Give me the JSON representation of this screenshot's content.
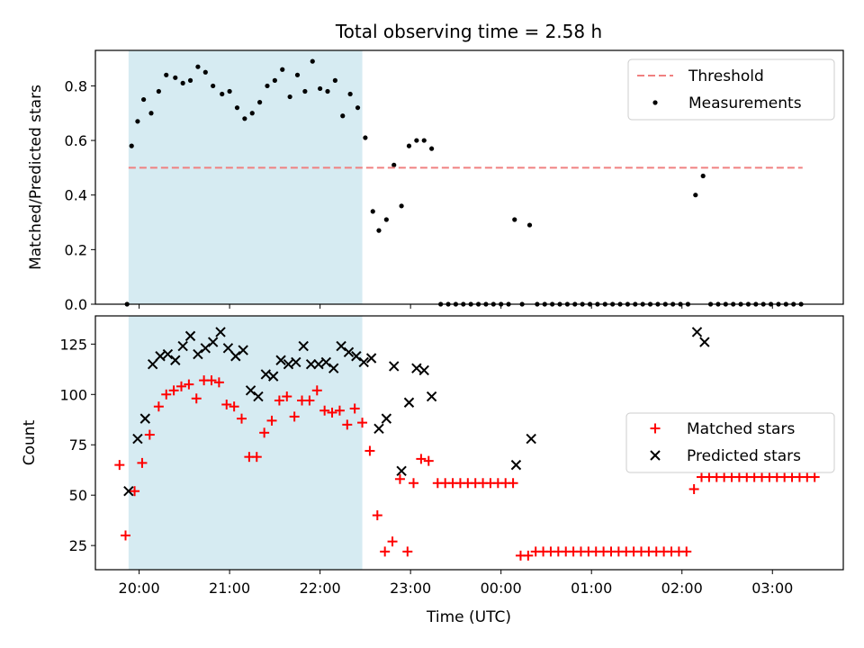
{
  "figure": {
    "title": "Total observing time = 2.58 h"
  },
  "colors": {
    "threshold": "#f08080",
    "measurement": "#000000",
    "matched": "#ff0000",
    "predicted": "#000000",
    "span": "#add8e6"
  },
  "chart_data": [
    {
      "type": "scatter",
      "title": "Total observing time = 2.58 h",
      "xlabel": "",
      "ylabel": "Matched/Predicted stars",
      "xlim": [
        "19:31",
        "03:47"
      ],
      "ylim": [
        0,
        0.93
      ],
      "yticks": [
        "0.0",
        "0.2",
        "0.4",
        "0.6",
        "0.8"
      ],
      "shaded_span": [
        "19:53",
        "22:28"
      ],
      "legend_position": "upper right",
      "threshold": {
        "name": "Threshold",
        "style": "dashed",
        "y": 0.5,
        "x_range": [
          "19:53",
          "03:20"
        ]
      },
      "series": [
        {
          "name": "Measurements",
          "points": [
            [
              "19:52",
              0.0
            ],
            [
              "19:55",
              0.58
            ],
            [
              "19:59",
              0.67
            ],
            [
              "20:03",
              0.75
            ],
            [
              "20:08",
              0.7
            ],
            [
              "20:13",
              0.78
            ],
            [
              "20:18",
              0.84
            ],
            [
              "20:24",
              0.83
            ],
            [
              "20:29",
              0.81
            ],
            [
              "20:34",
              0.82
            ],
            [
              "20:39",
              0.87
            ],
            [
              "20:44",
              0.85
            ],
            [
              "20:49",
              0.8
            ],
            [
              "20:55",
              0.77
            ],
            [
              "21:00",
              0.78
            ],
            [
              "21:05",
              0.72
            ],
            [
              "21:10",
              0.68
            ],
            [
              "21:15",
              0.7
            ],
            [
              "21:20",
              0.74
            ],
            [
              "21:25",
              0.8
            ],
            [
              "21:30",
              0.82
            ],
            [
              "21:35",
              0.86
            ],
            [
              "21:40",
              0.76
            ],
            [
              "21:45",
              0.84
            ],
            [
              "21:50",
              0.78
            ],
            [
              "21:55",
              0.89
            ],
            [
              "22:00",
              0.79
            ],
            [
              "22:05",
              0.78
            ],
            [
              "22:10",
              0.82
            ],
            [
              "22:15",
              0.69
            ],
            [
              "22:20",
              0.77
            ],
            [
              "22:25",
              0.72
            ],
            [
              "22:30",
              0.61
            ],
            [
              "22:35",
              0.34
            ],
            [
              "22:39",
              0.27
            ],
            [
              "22:44",
              0.31
            ],
            [
              "22:49",
              0.51
            ],
            [
              "22:54",
              0.36
            ],
            [
              "22:59",
              0.58
            ],
            [
              "23:04",
              0.6
            ],
            [
              "23:09",
              0.6
            ],
            [
              "23:14",
              0.57
            ],
            [
              "23:20",
              0.0
            ],
            [
              "23:25",
              0.0
            ],
            [
              "23:30",
              0.0
            ],
            [
              "23:35",
              0.0
            ],
            [
              "23:40",
              0.0
            ],
            [
              "23:45",
              0.0
            ],
            [
              "23:50",
              0.0
            ],
            [
              "23:55",
              0.0
            ],
            [
              "00:00",
              0.0
            ],
            [
              "00:05",
              0.0
            ],
            [
              "00:09",
              0.31
            ],
            [
              "00:14",
              0.0
            ],
            [
              "00:19",
              0.29
            ],
            [
              "00:24",
              0.0
            ],
            [
              "00:29",
              0.0
            ],
            [
              "00:34",
              0.0
            ],
            [
              "00:39",
              0.0
            ],
            [
              "00:44",
              0.0
            ],
            [
              "00:49",
              0.0
            ],
            [
              "00:54",
              0.0
            ],
            [
              "00:59",
              0.0
            ],
            [
              "01:04",
              0.0
            ],
            [
              "01:09",
              0.0
            ],
            [
              "01:14",
              0.0
            ],
            [
              "01:19",
              0.0
            ],
            [
              "01:24",
              0.0
            ],
            [
              "01:29",
              0.0
            ],
            [
              "01:34",
              0.0
            ],
            [
              "01:39",
              0.0
            ],
            [
              "01:44",
              0.0
            ],
            [
              "01:49",
              0.0
            ],
            [
              "01:54",
              0.0
            ],
            [
              "01:59",
              0.0
            ],
            [
              "02:04",
              0.0
            ],
            [
              "02:09",
              0.4
            ],
            [
              "02:14",
              0.47
            ],
            [
              "02:19",
              0.0
            ],
            [
              "02:24",
              0.0
            ],
            [
              "02:29",
              0.0
            ],
            [
              "02:34",
              0.0
            ],
            [
              "02:39",
              0.0
            ],
            [
              "02:44",
              0.0
            ],
            [
              "02:49",
              0.0
            ],
            [
              "02:54",
              0.0
            ],
            [
              "02:59",
              0.0
            ],
            [
              "03:04",
              0.0
            ],
            [
              "03:09",
              0.0
            ],
            [
              "03:14",
              0.0
            ],
            [
              "03:19",
              0.0
            ]
          ]
        }
      ]
    },
    {
      "type": "scatter",
      "xlabel": "Time (UTC)",
      "ylabel": "Count",
      "xlim": [
        "19:31",
        "03:47"
      ],
      "ylim": [
        13,
        139
      ],
      "yticks": [
        "25",
        "50",
        "75",
        "100",
        "125"
      ],
      "xticks": [
        "20:00",
        "21:00",
        "22:00",
        "23:00",
        "00:00",
        "01:00",
        "02:00",
        "03:00"
      ],
      "shaded_span": [
        "19:53",
        "22:28"
      ],
      "legend_position": "center right",
      "series": [
        {
          "name": "Matched stars",
          "marker": "+",
          "points": [
            [
              "19:47",
              65
            ],
            [
              "19:51",
              30
            ],
            [
              "19:57",
              52
            ],
            [
              "20:02",
              66
            ],
            [
              "20:07",
              80
            ],
            [
              "20:13",
              94
            ],
            [
              "20:18",
              100
            ],
            [
              "20:23",
              102
            ],
            [
              "20:28",
              104
            ],
            [
              "20:33",
              105
            ],
            [
              "20:38",
              98
            ],
            [
              "20:43",
              107
            ],
            [
              "20:48",
              107
            ],
            [
              "20:53",
              106
            ],
            [
              "20:58",
              95
            ],
            [
              "21:03",
              94
            ],
            [
              "21:08",
              88
            ],
            [
              "21:13",
              69
            ],
            [
              "21:18",
              69
            ],
            [
              "21:23",
              81
            ],
            [
              "21:28",
              87
            ],
            [
              "21:33",
              97
            ],
            [
              "21:38",
              99
            ],
            [
              "21:43",
              89
            ],
            [
              "21:48",
              97
            ],
            [
              "21:53",
              97
            ],
            [
              "21:58",
              102
            ],
            [
              "22:03",
              92
            ],
            [
              "22:08",
              91
            ],
            [
              "22:13",
              92
            ],
            [
              "22:18",
              85
            ],
            [
              "22:23",
              93
            ],
            [
              "22:28",
              86
            ],
            [
              "22:33",
              72
            ],
            [
              "22:38",
              40
            ],
            [
              "22:43",
              22
            ],
            [
              "22:48",
              27
            ],
            [
              "22:53",
              58
            ],
            [
              "22:58",
              22
            ],
            [
              "23:02",
              56
            ],
            [
              "23:07",
              68
            ],
            [
              "23:12",
              67
            ],
            [
              "23:18",
              56
            ],
            [
              "23:23",
              56
            ],
            [
              "23:28",
              56
            ],
            [
              "23:33",
              56
            ],
            [
              "23:38",
              56
            ],
            [
              "23:43",
              56
            ],
            [
              "23:48",
              56
            ],
            [
              "23:53",
              56
            ],
            [
              "23:58",
              56
            ],
            [
              "00:03",
              56
            ],
            [
              "00:08",
              56
            ],
            [
              "00:13",
              20
            ],
            [
              "00:18",
              20
            ],
            [
              "00:23",
              22
            ],
            [
              "00:28",
              22
            ],
            [
              "00:33",
              22
            ],
            [
              "00:38",
              22
            ],
            [
              "00:43",
              22
            ],
            [
              "00:48",
              22
            ],
            [
              "00:53",
              22
            ],
            [
              "00:58",
              22
            ],
            [
              "01:03",
              22
            ],
            [
              "01:08",
              22
            ],
            [
              "01:13",
              22
            ],
            [
              "01:18",
              22
            ],
            [
              "01:23",
              22
            ],
            [
              "01:28",
              22
            ],
            [
              "01:33",
              22
            ],
            [
              "01:38",
              22
            ],
            [
              "01:43",
              22
            ],
            [
              "01:48",
              22
            ],
            [
              "01:53",
              22
            ],
            [
              "01:58",
              22
            ],
            [
              "02:03",
              22
            ],
            [
              "02:08",
              53
            ],
            [
              "02:13",
              59
            ],
            [
              "02:18",
              59
            ],
            [
              "02:23",
              59
            ],
            [
              "02:28",
              59
            ],
            [
              "02:33",
              59
            ],
            [
              "02:38",
              59
            ],
            [
              "02:43",
              59
            ],
            [
              "02:48",
              59
            ],
            [
              "02:53",
              59
            ],
            [
              "02:58",
              59
            ],
            [
              "03:03",
              59
            ],
            [
              "03:08",
              59
            ],
            [
              "03:13",
              59
            ],
            [
              "03:18",
              59
            ],
            [
              "03:23",
              59
            ],
            [
              "03:28",
              59
            ]
          ]
        },
        {
          "name": "Predicted stars",
          "marker": "x",
          "points": [
            [
              "19:53",
              52
            ],
            [
              "19:59",
              78
            ],
            [
              "20:04",
              88
            ],
            [
              "20:09",
              115
            ],
            [
              "20:14",
              119
            ],
            [
              "20:19",
              120
            ],
            [
              "20:24",
              117
            ],
            [
              "20:29",
              124
            ],
            [
              "20:34",
              129
            ],
            [
              "20:39",
              120
            ],
            [
              "20:44",
              123
            ],
            [
              "20:49",
              126
            ],
            [
              "20:54",
              131
            ],
            [
              "20:59",
              123
            ],
            [
              "21:04",
              119
            ],
            [
              "21:09",
              122
            ],
            [
              "21:14",
              102
            ],
            [
              "21:19",
              99
            ],
            [
              "21:24",
              110
            ],
            [
              "21:29",
              109
            ],
            [
              "21:34",
              117
            ],
            [
              "21:39",
              115
            ],
            [
              "21:44",
              116
            ],
            [
              "21:49",
              124
            ],
            [
              "21:54",
              115
            ],
            [
              "21:59",
              115
            ],
            [
              "22:04",
              116
            ],
            [
              "22:09",
              113
            ],
            [
              "22:14",
              124
            ],
            [
              "22:19",
              121
            ],
            [
              "22:24",
              119
            ],
            [
              "22:29",
              116
            ],
            [
              "22:34",
              118
            ],
            [
              "22:39",
              83
            ],
            [
              "22:44",
              88
            ],
            [
              "22:49",
              114
            ],
            [
              "22:54",
              62
            ],
            [
              "22:59",
              96
            ],
            [
              "23:04",
              113
            ],
            [
              "23:09",
              112
            ],
            [
              "23:14",
              99
            ],
            [
              "00:10",
              65
            ],
            [
              "00:20",
              78
            ],
            [
              "02:10",
              131
            ],
            [
              "02:15",
              126
            ]
          ]
        }
      ]
    }
  ]
}
